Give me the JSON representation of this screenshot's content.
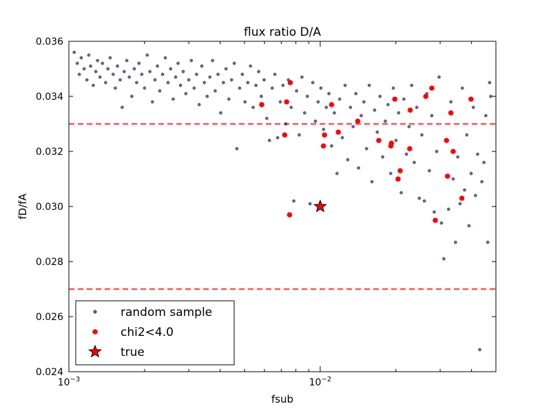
{
  "chart_data": {
    "type": "scatter",
    "title": "flux ratio D/A",
    "xlabel": "fsub",
    "ylabel": "fD/fA",
    "xscale": "log",
    "xlim": [
      0.001,
      0.05
    ],
    "ylim": [
      0.024,
      0.036
    ],
    "x_ticks": [
      {
        "value": 0.001,
        "base": "10",
        "exp": "−3"
      },
      {
        "value": 0.01,
        "base": "10",
        "exp": "−2"
      }
    ],
    "y_ticks": [
      {
        "value": 0.024,
        "label": "0.024"
      },
      {
        "value": 0.026,
        "label": "0.026"
      },
      {
        "value": 0.028,
        "label": "0.028"
      },
      {
        "value": 0.03,
        "label": "0.030"
      },
      {
        "value": 0.032,
        "label": "0.032"
      },
      {
        "value": 0.034,
        "label": "0.034"
      },
      {
        "value": 0.036,
        "label": "0.036"
      }
    ],
    "hlines": [
      {
        "y": 0.033,
        "color": "#ff3333",
        "style": "dashed"
      },
      {
        "y": 0.027,
        "color": "#ff3333",
        "style": "dashed"
      }
    ],
    "legend": {
      "position": "lower-left"
    },
    "series": [
      {
        "name": "random sample",
        "marker": "dot",
        "color": "#26265e",
        "points": [
          [
            0.00105,
            0.0356
          ],
          [
            0.00108,
            0.0352
          ],
          [
            0.0011,
            0.0348
          ],
          [
            0.00112,
            0.0354
          ],
          [
            0.00115,
            0.035
          ],
          [
            0.00118,
            0.0346
          ],
          [
            0.0012,
            0.0355
          ],
          [
            0.00122,
            0.0351
          ],
          [
            0.00125,
            0.0344
          ],
          [
            0.00128,
            0.0349
          ],
          [
            0.0013,
            0.0353
          ],
          [
            0.00133,
            0.0347
          ],
          [
            0.00136,
            0.0352
          ],
          [
            0.0014,
            0.0345
          ],
          [
            0.00143,
            0.035
          ],
          [
            0.00146,
            0.0354
          ],
          [
            0.0015,
            0.0348
          ],
          [
            0.00153,
            0.0343
          ],
          [
            0.00156,
            0.0351
          ],
          [
            0.0016,
            0.0346
          ],
          [
            0.00163,
            0.0336
          ],
          [
            0.00166,
            0.0349
          ],
          [
            0.0017,
            0.0353
          ],
          [
            0.00174,
            0.0347
          ],
          [
            0.00178,
            0.034
          ],
          [
            0.00182,
            0.035
          ],
          [
            0.00186,
            0.0345
          ],
          [
            0.0019,
            0.0352
          ],
          [
            0.00195,
            0.0348
          ],
          [
            0.002,
            0.0343
          ],
          [
            0.00205,
            0.0355
          ],
          [
            0.0021,
            0.0349
          ],
          [
            0.00215,
            0.0338
          ],
          [
            0.0022,
            0.0346
          ],
          [
            0.00225,
            0.0351
          ],
          [
            0.0023,
            0.0342
          ],
          [
            0.00236,
            0.0348
          ],
          [
            0.00242,
            0.0354
          ],
          [
            0.00248,
            0.0345
          ],
          [
            0.00254,
            0.035
          ],
          [
            0.0026,
            0.0339
          ],
          [
            0.00266,
            0.0347
          ],
          [
            0.00272,
            0.0352
          ],
          [
            0.00278,
            0.0344
          ],
          [
            0.00285,
            0.0349
          ],
          [
            0.00292,
            0.0341
          ],
          [
            0.003,
            0.0346
          ],
          [
            0.00307,
            0.0353
          ],
          [
            0.00315,
            0.0343
          ],
          [
            0.00322,
            0.0348
          ],
          [
            0.0033,
            0.0337
          ],
          [
            0.00338,
            0.0351
          ],
          [
            0.00346,
            0.0345
          ],
          [
            0.00355,
            0.034
          ],
          [
            0.00364,
            0.0347
          ],
          [
            0.00373,
            0.0353
          ],
          [
            0.00382,
            0.0342
          ],
          [
            0.00392,
            0.0348
          ],
          [
            0.00402,
            0.0334
          ],
          [
            0.00412,
            0.0345
          ],
          [
            0.00422,
            0.035
          ],
          [
            0.00433,
            0.0339
          ],
          [
            0.00444,
            0.0346
          ],
          [
            0.00455,
            0.0352
          ],
          [
            0.00466,
            0.0321
          ],
          [
            0.00478,
            0.0343
          ],
          [
            0.0049,
            0.0348
          ],
          [
            0.00502,
            0.0338
          ],
          [
            0.00515,
            0.0345
          ],
          [
            0.00528,
            0.0351
          ],
          [
            0.00541,
            0.0336
          ],
          [
            0.00555,
            0.0344
          ],
          [
            0.00569,
            0.0349
          ],
          [
            0.00583,
            0.034
          ],
          [
            0.00598,
            0.0346
          ],
          [
            0.00613,
            0.0332
          ],
          [
            0.00628,
            0.0324
          ],
          [
            0.00644,
            0.0343
          ],
          [
            0.0066,
            0.0348
          ],
          [
            0.00677,
            0.0325
          ],
          [
            0.00694,
            0.0338
          ],
          [
            0.00711,
            0.0344
          ],
          [
            0.00729,
            0.033
          ],
          [
            0.00747,
            0.0346
          ],
          [
            0.00766,
            0.0336
          ],
          [
            0.00785,
            0.0302
          ],
          [
            0.00805,
            0.0342
          ],
          [
            0.00825,
            0.0326
          ],
          [
            0.00846,
            0.0347
          ],
          [
            0.00867,
            0.0334
          ],
          [
            0.00889,
            0.034
          ],
          [
            0.00911,
            0.0301
          ],
          [
            0.00934,
            0.0345
          ],
          [
            0.00957,
            0.0331
          ],
          [
            0.00981,
            0.0338
          ],
          [
            0.01006,
            0.0343
          ],
          [
            0.01031,
            0.0328
          ],
          [
            0.01057,
            0.0336
          ],
          [
            0.01083,
            0.0341
          ],
          [
            0.0111,
            0.0322
          ],
          [
            0.01138,
            0.0334
          ],
          [
            0.01166,
            0.0312
          ],
          [
            0.01195,
            0.0339
          ],
          [
            0.01225,
            0.0325
          ],
          [
            0.01256,
            0.0344
          ],
          [
            0.01287,
            0.0317
          ],
          [
            0.01319,
            0.0336
          ],
          [
            0.01352,
            0.0329
          ],
          [
            0.01386,
            0.0341
          ],
          [
            0.01421,
            0.0314
          ],
          [
            0.01456,
            0.0333
          ],
          [
            0.01492,
            0.0338
          ],
          [
            0.01529,
            0.0321
          ],
          [
            0.01567,
            0.0344
          ],
          [
            0.01606,
            0.0309
          ],
          [
            0.01646,
            0.0335
          ],
          [
            0.01687,
            0.0327
          ],
          [
            0.01729,
            0.034
          ],
          [
            0.01772,
            0.0318
          ],
          [
            0.01816,
            0.0331
          ],
          [
            0.01861,
            0.0337
          ],
          [
            0.01907,
            0.0312
          ],
          [
            0.01954,
            0.0343
          ],
          [
            0.02002,
            0.0324
          ],
          [
            0.02051,
            0.0334
          ],
          [
            0.02101,
            0.0305
          ],
          [
            0.02152,
            0.0339
          ],
          [
            0.02204,
            0.0319
          ],
          [
            0.02257,
            0.0329
          ],
          [
            0.02311,
            0.0344
          ],
          [
            0.02366,
            0.0316
          ],
          [
            0.02422,
            0.0336
          ],
          [
            0.02479,
            0.0303
          ],
          [
            0.02537,
            0.0326
          ],
          [
            0.02596,
            0.0302
          ],
          [
            0.02656,
            0.0341
          ],
          [
            0.02717,
            0.0313
          ],
          [
            0.02779,
            0.0333
          ],
          [
            0.02842,
            0.0298
          ],
          [
            0.02906,
            0.032
          ],
          [
            0.02971,
            0.0347
          ],
          [
            0.03037,
            0.0294
          ],
          [
            0.03104,
            0.0281
          ],
          [
            0.03172,
            0.0324
          ],
          [
            0.03241,
            0.0299
          ],
          [
            0.03311,
            0.0338
          ],
          [
            0.03382,
            0.031
          ],
          [
            0.03454,
            0.0287
          ],
          [
            0.03527,
            0.0318
          ],
          [
            0.03601,
            0.0301
          ],
          [
            0.03676,
            0.0343
          ],
          [
            0.03752,
            0.0306
          ],
          [
            0.03829,
            0.0326
          ],
          [
            0.03907,
            0.0293
          ],
          [
            0.03986,
            0.0312
          ],
          [
            0.04066,
            0.0336
          ],
          [
            0.04147,
            0.0304
          ],
          [
            0.04229,
            0.0319
          ],
          [
            0.04312,
            0.0248
          ],
          [
            0.04396,
            0.0309
          ],
          [
            0.0448,
            0.0316
          ],
          [
            0.0456,
            0.0333
          ],
          [
            0.0464,
            0.0287
          ],
          [
            0.0472,
            0.0345
          ],
          [
            0.0477,
            0.034
          ]
        ]
      },
      {
        "name": "chi2<4.0",
        "marker": "circle",
        "color": "#ff0000",
        "points": [
          [
            0.00585,
            0.0337
          ],
          [
            0.00722,
            0.0326
          ],
          [
            0.00735,
            0.0338
          ],
          [
            0.00755,
            0.0297
          ],
          [
            0.0076,
            0.0345
          ],
          [
            0.0103,
            0.0322
          ],
          [
            0.0104,
            0.0326
          ],
          [
            0.0111,
            0.0337
          ],
          [
            0.0118,
            0.0327
          ],
          [
            0.0141,
            0.0331
          ],
          [
            0.0171,
            0.0324
          ],
          [
            0.0191,
            0.0322
          ],
          [
            0.0192,
            0.0323
          ],
          [
            0.0198,
            0.0339
          ],
          [
            0.0204,
            0.031
          ],
          [
            0.0208,
            0.0313
          ],
          [
            0.0227,
            0.0321
          ],
          [
            0.0228,
            0.0335
          ],
          [
            0.0263,
            0.034
          ],
          [
            0.0278,
            0.0343
          ],
          [
            0.0287,
            0.0295
          ],
          [
            0.0318,
            0.0324
          ],
          [
            0.0321,
            0.0311
          ],
          [
            0.0331,
            0.0334
          ],
          [
            0.0338,
            0.032
          ],
          [
            0.0366,
            0.0303
          ],
          [
            0.0398,
            0.0339
          ]
        ]
      },
      {
        "name": "true",
        "marker": "star",
        "color": "#ff0000",
        "points": [
          [
            0.01,
            0.03
          ]
        ]
      }
    ]
  }
}
